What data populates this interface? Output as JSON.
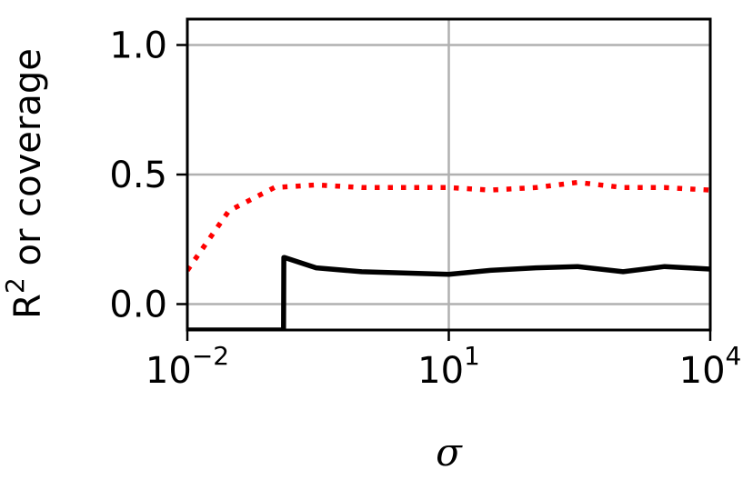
{
  "chart_data": {
    "type": "line",
    "xscale": "log",
    "xlim": [
      0.01,
      10000
    ],
    "ylim": [
      -0.1,
      1.1
    ],
    "grid": true,
    "xlabel": "σ",
    "ylabel": "R",
    "ylabel_sup": "2",
    "ylabel_rest": " or coverage",
    "x_ticks": [
      {
        "base": "10",
        "exp": "−2",
        "value": 0.01
      },
      {
        "base": "10",
        "exp": "1",
        "value": 10
      },
      {
        "base": "10",
        "exp": "4",
        "value": 10000
      }
    ],
    "y_ticks": [
      {
        "label": "0.0",
        "value": 0.0
      },
      {
        "label": "0.5",
        "value": 0.5
      },
      {
        "label": "1.0",
        "value": 1.0
      }
    ],
    "series": [
      {
        "color": "#ff0000",
        "style": "dotted",
        "x": [
          0.01,
          0.03,
          0.1,
          0.3,
          1,
          3,
          10,
          30,
          100,
          300,
          1000,
          3000,
          10000
        ],
        "y": [
          0.13,
          0.36,
          0.45,
          0.46,
          0.45,
          0.45,
          0.45,
          0.44,
          0.45,
          0.47,
          0.45,
          0.45,
          0.44
        ]
      },
      {
        "color": "#000000",
        "style": "solid",
        "x": [
          0.01,
          0.0103,
          0.127,
          0.128,
          0.13,
          0.3,
          1,
          3,
          10,
          30,
          100,
          300,
          1000,
          3000,
          10000
        ],
        "y": [
          -0.1,
          -0.1,
          -0.1,
          0.18,
          0.18,
          0.14,
          0.125,
          0.12,
          0.115,
          0.13,
          0.14,
          0.145,
          0.125,
          0.145,
          0.135
        ]
      }
    ]
  }
}
